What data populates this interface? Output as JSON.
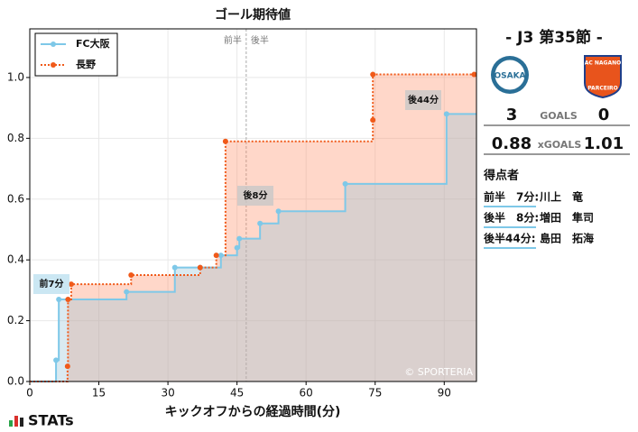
{
  "chart_data": {
    "type": "step",
    "title": "ゴール期待値",
    "x_label": "キックオフからの経過時間(分)",
    "xlim": [
      0,
      97
    ],
    "ylim": [
      0,
      1.16
    ],
    "xticks": [
      0,
      15,
      30,
      45,
      60,
      75,
      90
    ],
    "yticks": [
      {
        "value": 0,
        "label": "0.0"
      },
      {
        "value": 0.2,
        "label": "0.2"
      },
      {
        "value": 0.4,
        "label": "0.4"
      },
      {
        "value": 0.6,
        "label": "0.6"
      },
      {
        "value": 0.8,
        "label": "0.8"
      },
      {
        "value": 1.0,
        "label": "1.0"
      }
    ],
    "grid": true,
    "legend": "upper left",
    "series": [
      {
        "name": "FC大阪",
        "color": "#7ec8e8",
        "x": [
          5.7,
          6.3,
          21,
          31.5,
          37,
          41.5,
          45,
          45.5,
          50,
          54,
          68.5,
          90.5
        ],
        "values": [
          0.07,
          0.27,
          0.295,
          0.375,
          0.375,
          0.415,
          0.44,
          0.47,
          0.52,
          0.56,
          0.65,
          0.88
        ]
      },
      {
        "name": "長野",
        "color": "#f05a1a",
        "x": [
          8.2,
          8.3,
          9,
          22,
          37,
          40.5,
          42.5,
          74.5,
          74.5,
          96.5
        ],
        "values": [
          0.05,
          0.27,
          0.32,
          0.35,
          0.375,
          0.415,
          0.79,
          0.86,
          1.01,
          1.01
        ]
      }
    ],
    "halftime": 47,
    "halftime_labels": [
      "前半",
      "後半"
    ],
    "annotations": [
      "前7分",
      "後8分",
      "後44分"
    ],
    "credit": "© SPORTERIA"
  },
  "match": {
    "round": "- J3 第35節 -",
    "logo_home": "OSAKA",
    "logo_away": [
      "AC NAGANO",
      "PARCEIRO"
    ],
    "goals": [
      3,
      0
    ],
    "goals_label": "GOALS",
    "xg": [
      0.88,
      1.01
    ],
    "xg_label": "xGOALS",
    "scorers_title": "得点者",
    "scorers": [
      [
        "前半　7分:",
        "川上　竜"
      ],
      [
        "後半　8分:",
        "増田　隼司"
      ],
      [
        "後半44分:",
        "島田　拓海"
      ]
    ]
  },
  "brand": "STATs"
}
